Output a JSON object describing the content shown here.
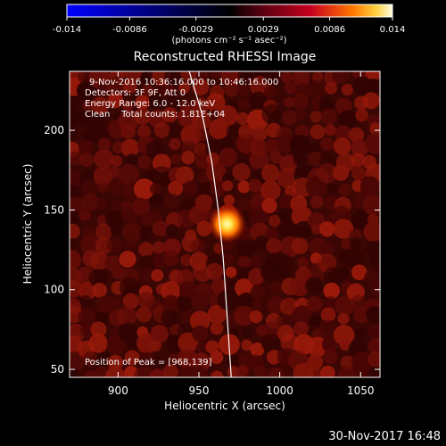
{
  "colorbar": {
    "ticks": [
      "-0.014",
      "-0.0086",
      "-0.0029",
      "0.0029",
      "0.0086",
      "0.014"
    ],
    "units": "(photons cm⁻² s⁻¹ asec⁻²)",
    "range": [
      -0.014,
      0.014
    ]
  },
  "chart_data": {
    "type": "heatmap",
    "title": "Reconstructed RHESSI Image",
    "xlabel": "Heliocentric X (arcsec)",
    "ylabel": "Heliocentric Y (arcsec)",
    "xlim": [
      870,
      1062
    ],
    "ylim": [
      45,
      237
    ],
    "xticks": [
      "900",
      "950",
      "1000",
      "1050"
    ],
    "yticks": [
      "50",
      "100",
      "150",
      "200"
    ],
    "annotations": [
      "9-Nov-2016 10:36:16.000 to 10:46:16.000",
      "Detectors: 3F 9F, Att 0",
      "Energy Range: 6.0 - 12.0 keV",
      "Clean    Total counts: 1.81E+04"
    ],
    "peak_label": "Position of Peak = [968,139]",
    "peak": [
      968,
      139
    ],
    "limb_curve": [
      [
        944,
        237
      ],
      [
        952,
        210
      ],
      [
        958,
        180
      ],
      [
        962,
        150
      ],
      [
        965,
        120
      ],
      [
        967,
        90
      ],
      [
        969,
        60
      ],
      [
        970,
        45
      ]
    ]
  },
  "footer": {
    "date": "30-Nov-2017 16:48"
  },
  "colors": {
    "background": "#000000",
    "text": "#ffffff"
  }
}
